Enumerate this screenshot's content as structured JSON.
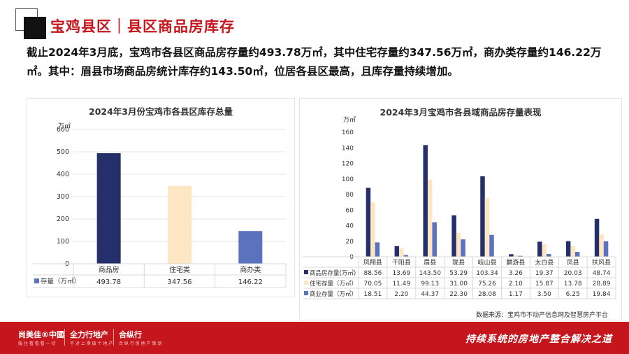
{
  "header": {
    "title": "宝鸡县区｜县区商品房库存",
    "headline": "截止2024年3月底，宝鸡市各县区商品房存量约493.78万㎡，其中住宅存量约347.56万㎡，商办类存量约146.22万㎡。其中：眉县市场商品房统计库存约143.50㎡，位居各县区最高，且库存量持续增加。"
  },
  "chart_data": [
    {
      "type": "bar",
      "title": "2024年3月份宝鸡市各县区库存总量",
      "ylabel": "万㎡",
      "ylim": [
        0,
        600
      ],
      "yticks": [
        0,
        100,
        200,
        300,
        400,
        500,
        600
      ],
      "grid": true,
      "categories": [
        "商品房",
        "住宅类",
        "商办类"
      ],
      "series": [
        {
          "name": "存量（万㎡）",
          "values": [
            493.78,
            347.56,
            146.22
          ],
          "colors": [
            "#25306b",
            "#fde6c4",
            "#5b72be"
          ]
        }
      ],
      "table": true
    },
    {
      "type": "bar",
      "title": "2024年3月宝鸡市各县域商品房存量表现",
      "ylabel": "万㎡",
      "ylim": [
        0,
        160
      ],
      "yticks": [
        0,
        20,
        40,
        60,
        80,
        100,
        120,
        140,
        160
      ],
      "grid": false,
      "categories": [
        "凤翔县",
        "千阳县",
        "眉县",
        "陇县",
        "岐山县",
        "麟游县",
        "太白县",
        "凤县",
        "扶风县"
      ],
      "series": [
        {
          "name": "商品房存量(万㎡)",
          "color": "#25306b",
          "values": [
            88.56,
            13.69,
            143.5,
            53.29,
            103.34,
            3.26,
            19.37,
            20.03,
            48.74
          ]
        },
        {
          "name": "住宅存量（万㎡）",
          "color": "#fde6c4",
          "values": [
            70.05,
            11.49,
            99.13,
            31.0,
            75.26,
            2.1,
            15.87,
            13.78,
            28.89
          ]
        },
        {
          "name": "商业存量（万㎡）",
          "color": "#5b72be",
          "values": [
            18.51,
            2.2,
            44.37,
            22.3,
            28.08,
            1.17,
            3.5,
            6.25,
            19.84
          ]
        }
      ],
      "table": true
    }
  ],
  "source": "数据来源：宝鸡市不动产信息网及智慧房产平台",
  "footer": {
    "brand1": "尚美佳®中國",
    "brand1_sub": "服 住 看 看 看 一 切",
    "brand2": "全力行地产",
    "brand2_sub": "不 对 上 得 做 个 地 产",
    "brand3": "合纵行",
    "brand3_sub": "合 纵 行 房 地 产 策 划",
    "slogan": "持续系统的房地产整合解决之道"
  }
}
